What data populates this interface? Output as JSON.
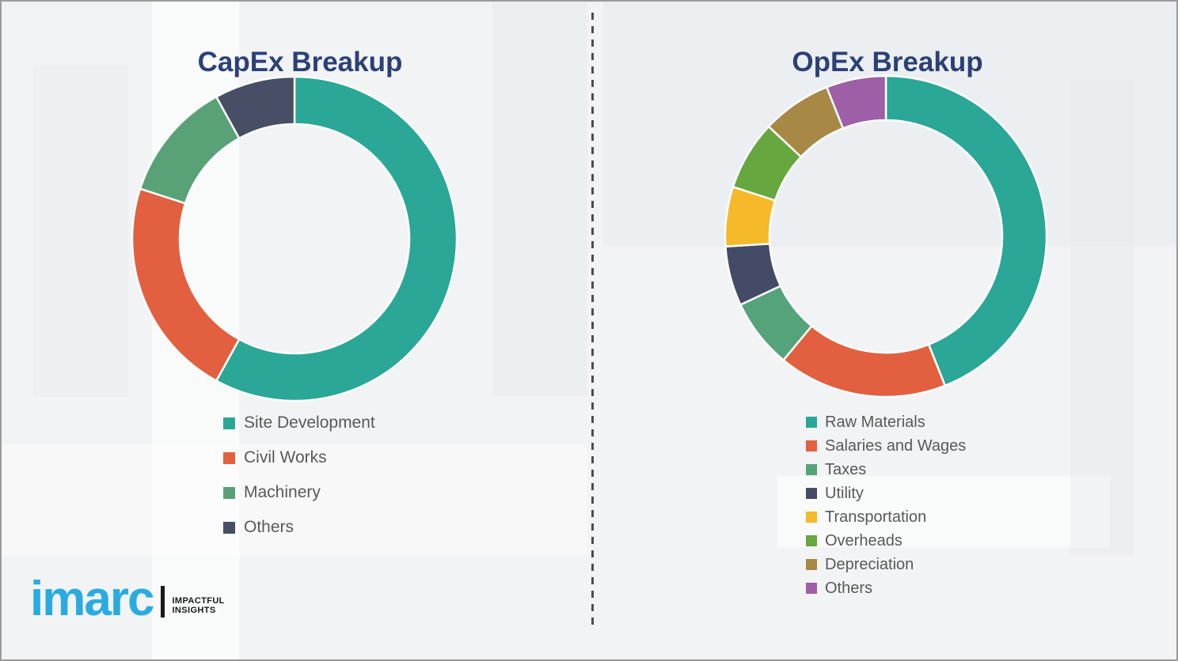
{
  "chart_data": [
    {
      "type": "pie",
      "subtype": "donut",
      "title": "CapEx Breakup",
      "categories": [
        "Site Development",
        "Civil Works",
        "Machinery",
        "Others"
      ],
      "values": [
        58,
        22,
        12,
        8
      ],
      "colors": [
        "#2aa796",
        "#e2603f",
        "#59a177",
        "#474f66"
      ],
      "start_angle_deg": 0,
      "direction": "clockwise",
      "data_labels": "none",
      "legend_position": "below-chart-left"
    },
    {
      "type": "pie",
      "subtype": "donut",
      "title": "OpEx Breakup",
      "categories": [
        "Raw Materials",
        "Salaries and Wages",
        "Taxes",
        "Utility",
        "Transportation",
        "Overheads",
        "Depreciation",
        "Others"
      ],
      "values": [
        44,
        17,
        7,
        6,
        6,
        7,
        7,
        6
      ],
      "colors": [
        "#2aa796",
        "#e2603f",
        "#55a37a",
        "#434b66",
        "#f5b929",
        "#67a73f",
        "#a78945",
        "#9e5fa7"
      ],
      "start_angle_deg": 0,
      "direction": "clockwise",
      "data_labels": "none",
      "legend_position": "below-chart-left"
    }
  ],
  "logo": {
    "wordmark": "imarc",
    "tagline_line1": "IMPACTFUL",
    "tagline_line2": "INSIGHTS",
    "brand_color": "#29abe2"
  },
  "colors": {
    "title_text": "#2b4077",
    "legend_text": "#595959",
    "divider": "#4d4d4d",
    "background": "#f2f3f4",
    "frame_border": "#9b9b9b",
    "segment_gap": "#ffffff"
  }
}
